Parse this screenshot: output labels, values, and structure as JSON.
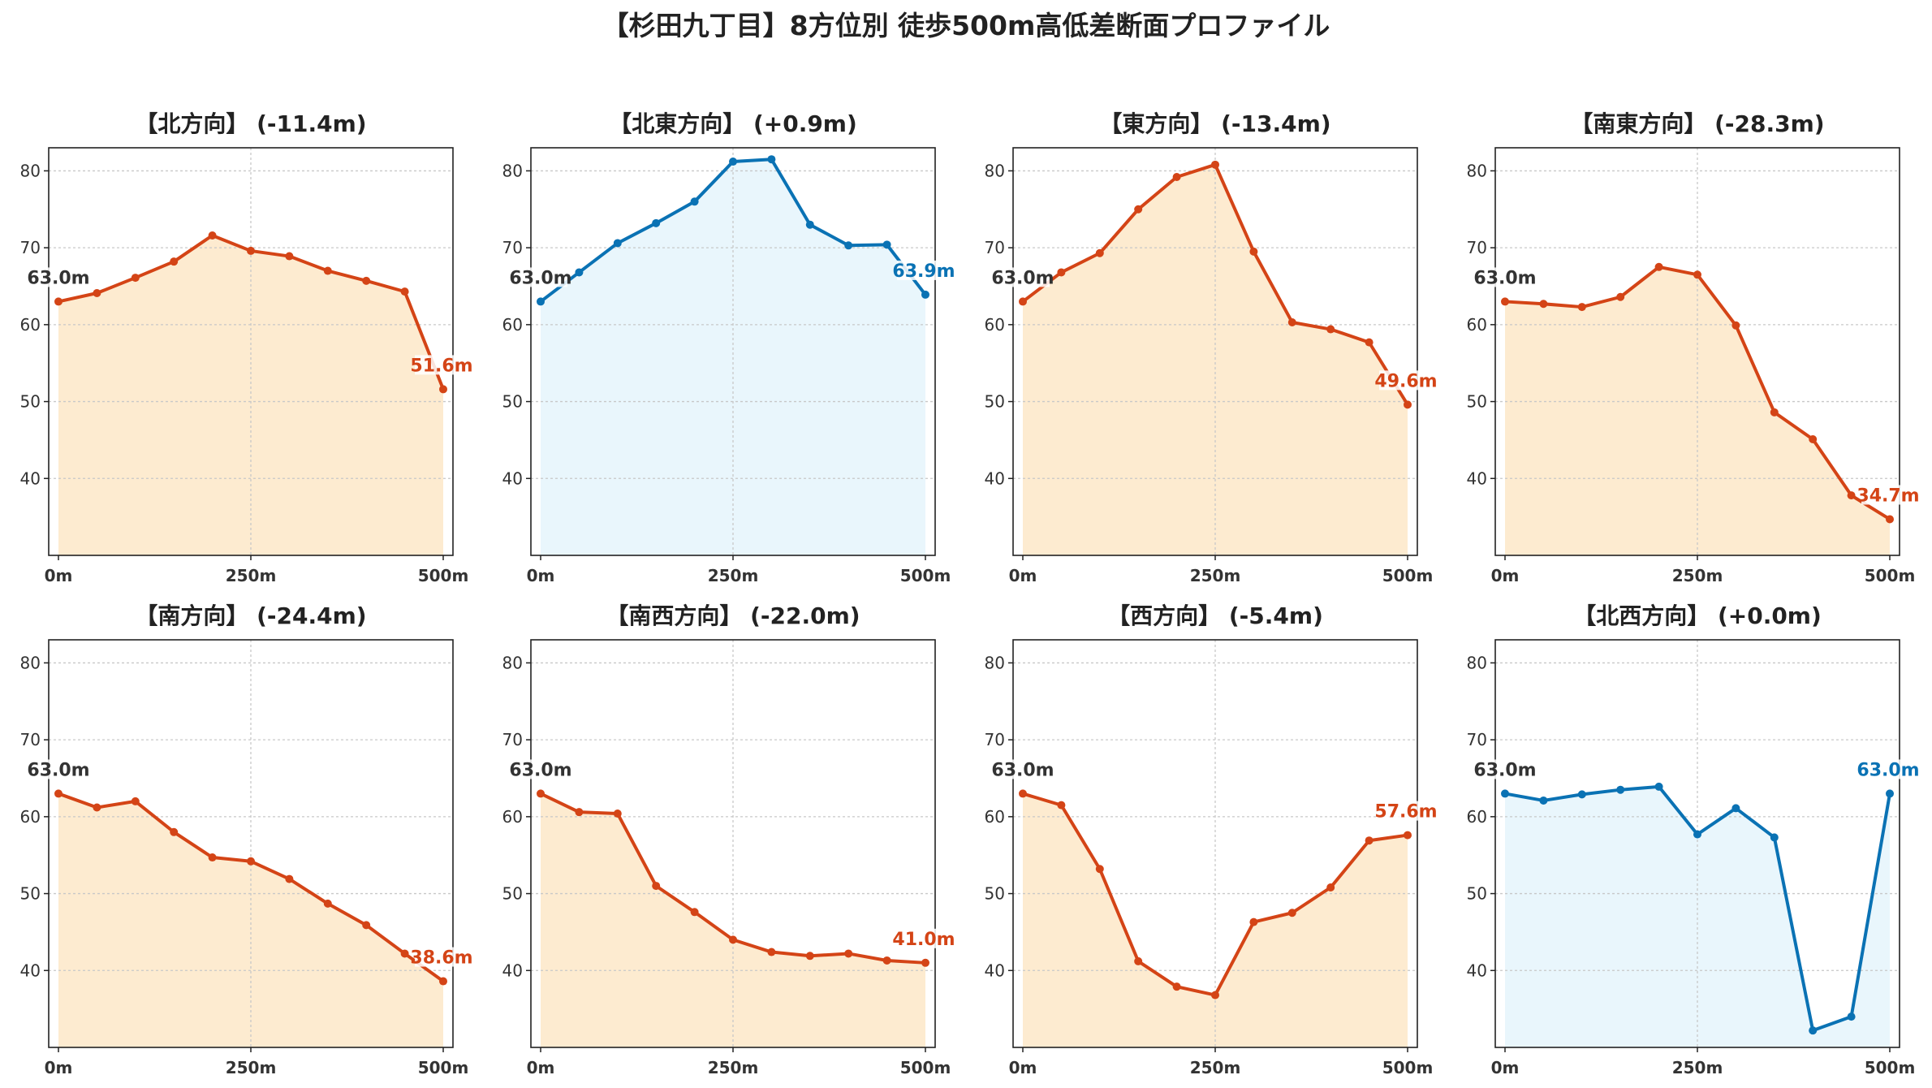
{
  "title": "【杉田九丁目】8方位別 徒歩500m高低差断面プロファイル",
  "colors": {
    "down_line": "#d44416",
    "down_fill": "#fdebd0",
    "up_line": "#0a72b4",
    "up_fill": "#e9f6fc",
    "start_label": "#333333"
  },
  "chart_data": [
    {
      "type": "area",
      "title": "【北方向】 (-11.4m)",
      "x": [
        0,
        50,
        100,
        150,
        200,
        250,
        300,
        350,
        400,
        450,
        500
      ],
      "x_ticks": [
        "0m",
        "250m",
        "500m"
      ],
      "y_ticks": [
        "40",
        "50",
        "60",
        "70",
        "80"
      ],
      "values": [
        63.0,
        64.1,
        66.1,
        68.2,
        71.6,
        69.6,
        68.9,
        67.0,
        65.7,
        64.3,
        51.6
      ],
      "start_label": "63.0m",
      "end_label": "51.6m",
      "trend": "down",
      "xlim": [
        0,
        500
      ],
      "ylim": [
        30,
        83
      ],
      "grid": true
    },
    {
      "type": "area",
      "title": "【北東方向】 (+0.9m)",
      "x": [
        0,
        50,
        100,
        150,
        200,
        250,
        300,
        350,
        400,
        450,
        500
      ],
      "x_ticks": [
        "0m",
        "250m",
        "500m"
      ],
      "y_ticks": [
        "40",
        "50",
        "60",
        "70",
        "80"
      ],
      "values": [
        63.0,
        66.8,
        70.6,
        73.2,
        76.0,
        81.2,
        81.5,
        73.0,
        70.3,
        70.4,
        63.9
      ],
      "start_label": "63.0m",
      "end_label": "63.9m",
      "trend": "up",
      "xlim": [
        0,
        500
      ],
      "ylim": [
        30,
        83
      ],
      "grid": true
    },
    {
      "type": "area",
      "title": "【東方向】 (-13.4m)",
      "x": [
        0,
        50,
        100,
        150,
        200,
        250,
        300,
        350,
        400,
        450,
        500
      ],
      "x_ticks": [
        "0m",
        "250m",
        "500m"
      ],
      "y_ticks": [
        "40",
        "50",
        "60",
        "70",
        "80"
      ],
      "values": [
        63.0,
        66.8,
        69.3,
        75.0,
        79.2,
        80.8,
        69.5,
        60.3,
        59.4,
        57.7,
        49.6
      ],
      "start_label": "63.0m",
      "end_label": "49.6m",
      "trend": "down",
      "xlim": [
        0,
        500
      ],
      "ylim": [
        30,
        83
      ],
      "grid": true
    },
    {
      "type": "area",
      "title": "【南東方向】 (-28.3m)",
      "x": [
        0,
        50,
        100,
        150,
        200,
        250,
        300,
        350,
        400,
        450,
        500
      ],
      "x_ticks": [
        "0m",
        "250m",
        "500m"
      ],
      "y_ticks": [
        "40",
        "50",
        "60",
        "70",
        "80"
      ],
      "values": [
        63.0,
        62.7,
        62.3,
        63.6,
        67.5,
        66.5,
        59.9,
        48.6,
        45.1,
        37.8,
        34.7
      ],
      "start_label": "63.0m",
      "end_label": "34.7m",
      "trend": "down",
      "xlim": [
        0,
        500
      ],
      "ylim": [
        30,
        83
      ],
      "grid": true
    },
    {
      "type": "area",
      "title": "【南方向】 (-24.4m)",
      "x": [
        0,
        50,
        100,
        150,
        200,
        250,
        300,
        350,
        400,
        450,
        500
      ],
      "x_ticks": [
        "0m",
        "250m",
        "500m"
      ],
      "y_ticks": [
        "40",
        "50",
        "60",
        "70",
        "80"
      ],
      "values": [
        63.0,
        61.2,
        62.0,
        58.0,
        54.7,
        54.2,
        51.9,
        48.7,
        45.9,
        42.2,
        38.6
      ],
      "start_label": "63.0m",
      "end_label": "38.6m",
      "trend": "down",
      "xlim": [
        0,
        500
      ],
      "ylim": [
        30,
        83
      ],
      "grid": true
    },
    {
      "type": "area",
      "title": "【南西方向】 (-22.0m)",
      "x": [
        0,
        50,
        100,
        150,
        200,
        250,
        300,
        350,
        400,
        450,
        500
      ],
      "x_ticks": [
        "0m",
        "250m",
        "500m"
      ],
      "y_ticks": [
        "40",
        "50",
        "60",
        "70",
        "80"
      ],
      "values": [
        63.0,
        60.6,
        60.4,
        51.0,
        47.6,
        44.0,
        42.4,
        41.9,
        42.2,
        41.3,
        41.0
      ],
      "start_label": "63.0m",
      "end_label": "41.0m",
      "trend": "down",
      "xlim": [
        0,
        500
      ],
      "ylim": [
        30,
        83
      ],
      "grid": true
    },
    {
      "type": "area",
      "title": "【西方向】 (-5.4m)",
      "x": [
        0,
        50,
        100,
        150,
        200,
        250,
        300,
        350,
        400,
        450,
        500
      ],
      "x_ticks": [
        "0m",
        "250m",
        "500m"
      ],
      "y_ticks": [
        "40",
        "50",
        "60",
        "70",
        "80"
      ],
      "values": [
        63.0,
        61.5,
        53.2,
        41.2,
        37.9,
        36.8,
        46.3,
        47.5,
        50.8,
        56.9,
        57.6
      ],
      "start_label": "63.0m",
      "end_label": "57.6m",
      "trend": "down",
      "xlim": [
        0,
        500
      ],
      "ylim": [
        30,
        83
      ],
      "grid": true
    },
    {
      "type": "area",
      "title": "【北西方向】 (+0.0m)",
      "x": [
        0,
        50,
        100,
        150,
        200,
        250,
        300,
        350,
        400,
        450,
        500
      ],
      "x_ticks": [
        "0m",
        "250m",
        "500m"
      ],
      "y_ticks": [
        "40",
        "50",
        "60",
        "70",
        "80"
      ],
      "values": [
        63.0,
        62.1,
        62.9,
        63.5,
        63.9,
        57.7,
        61.1,
        57.3,
        32.2,
        34.0,
        63.0
      ],
      "start_label": "63.0m",
      "end_label": "63.0m",
      "trend": "up",
      "xlim": [
        0,
        500
      ],
      "ylim": [
        30,
        83
      ],
      "grid": true
    }
  ]
}
